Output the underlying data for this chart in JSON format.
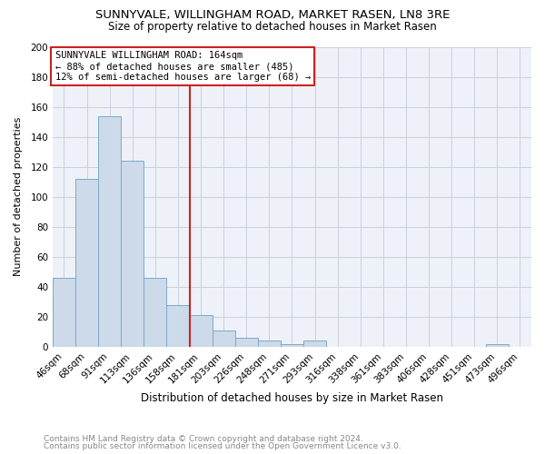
{
  "title1": "SUNNYVALE, WILLINGHAM ROAD, MARKET RASEN, LN8 3RE",
  "title2": "Size of property relative to detached houses in Market Rasen",
  "xlabel": "Distribution of detached houses by size in Market Rasen",
  "ylabel": "Number of detached properties",
  "footnote1": "Contains HM Land Registry data © Crown copyright and database right 2024.",
  "footnote2": "Contains public sector information licensed under the Open Government Licence v3.0.",
  "annotation_title": "SUNNYVALE WILLINGHAM ROAD: 164sqm",
  "annotation_line1": "← 88% of detached houses are smaller (485)",
  "annotation_line2": "12% of semi-detached houses are larger (68) →",
  "bar_labels": [
    "46sqm",
    "68sqm",
    "91sqm",
    "113sqm",
    "136sqm",
    "158sqm",
    "181sqm",
    "203sqm",
    "226sqm",
    "248sqm",
    "271sqm",
    "293sqm",
    "316sqm",
    "338sqm",
    "361sqm",
    "383sqm",
    "406sqm",
    "428sqm",
    "451sqm",
    "473sqm",
    "496sqm"
  ],
  "bar_values": [
    46,
    112,
    154,
    124,
    46,
    28,
    21,
    11,
    6,
    4,
    2,
    4,
    0,
    0,
    0,
    0,
    0,
    0,
    0,
    2,
    0
  ],
  "bar_color": "#ccdaea",
  "bar_edge_color": "#7aaac8",
  "reference_line_x": 5.5,
  "ylim": [
    0,
    200
  ],
  "yticks": [
    0,
    20,
    40,
    60,
    80,
    100,
    120,
    140,
    160,
    180,
    200
  ],
  "grid_color": "#c8d0dc",
  "annotation_box_color": "#ffffff",
  "annotation_box_edge": "#cc2222",
  "ref_line_color": "#cc2222",
  "plot_bg_color": "#eef2f8",
  "fig_bg_color": "#ffffff",
  "footnote_color": "#888888",
  "title1_fontsize": 9.5,
  "title2_fontsize": 8.5,
  "xlabel_fontsize": 8.5,
  "ylabel_fontsize": 8,
  "tick_fontsize": 7.5,
  "annotation_fontsize": 7.5,
  "footnote_fontsize": 6.5
}
